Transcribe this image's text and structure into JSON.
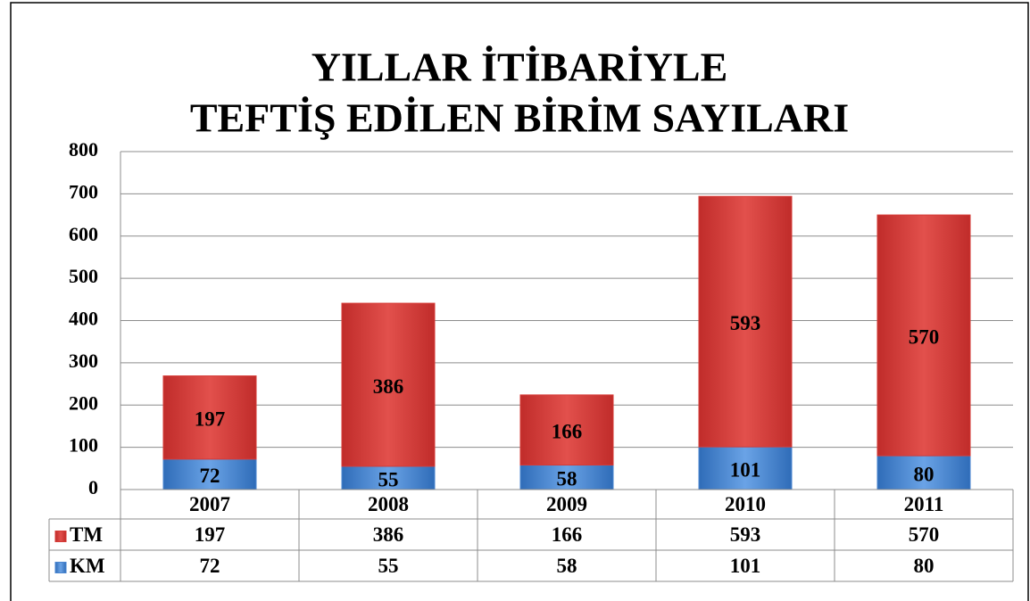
{
  "chart_data": {
    "type": "stacked_bar",
    "title": [
      "YILLAR İTİBARİYLE",
      "TEFTİŞ EDİLEN BİRİM SAYILARI"
    ],
    "categories": [
      "2007",
      "2008",
      "2009",
      "2010",
      "2011"
    ],
    "series": [
      {
        "name": "KM",
        "color": "#4a86d0",
        "values": [
          72,
          55,
          58,
          101,
          80
        ]
      },
      {
        "name": "TM",
        "color": "#d63a36",
        "values": [
          197,
          386,
          166,
          593,
          570
        ]
      }
    ],
    "ylim": [
      0,
      800
    ],
    "yticks": [
      0,
      100,
      200,
      300,
      400,
      500,
      600,
      700,
      800
    ],
    "grid": true,
    "data_table": true
  }
}
